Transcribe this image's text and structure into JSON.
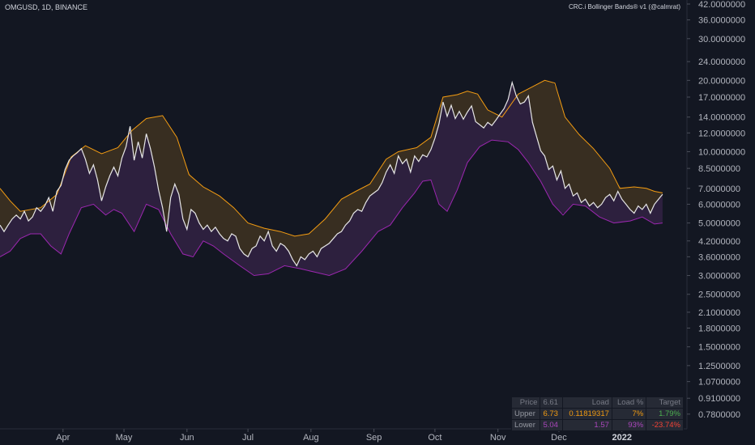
{
  "header": {
    "symbol": "OMGUSD, 1D, BINANCE",
    "indicator": "CRC.i Bollinger Bands® v1 (@calmrat)"
  },
  "chart_data": {
    "type": "line",
    "scale": "log",
    "ylim": [
      0.72,
      42
    ],
    "y_ticks": [
      "42.0000000",
      "36.0000000",
      "30.0000000",
      "24.0000000",
      "20.0000000",
      "17.0000000",
      "14.0000000",
      "12.0000000",
      "10.0000000",
      "8.5000000",
      "7.0000000",
      "6.0000000",
      "5.0000000",
      "4.2000000",
      "3.6000000",
      "3.0000000",
      "2.5000000",
      "2.1000000",
      "1.8000000",
      "1.5000000",
      "1.2500000",
      "1.0700000",
      "0.9100000",
      "0.7800000"
    ],
    "x_ticks": [
      "Apr",
      "May",
      "Jun",
      "Jul",
      "Aug",
      "Sep",
      "Oct",
      "Nov",
      "Dec",
      "2022"
    ],
    "x_tick_days": [
      31,
      61,
      92,
      122,
      153,
      184,
      214,
      245,
      275,
      306
    ],
    "x_range_days": [
      0,
      338
    ],
    "colors": {
      "price": "#e6e6e6",
      "upper": "#f39c12",
      "lower": "#9c27b0",
      "upper_fill": "#3a2f22",
      "lower_fill": "#2e2140",
      "background": "#131722"
    },
    "series": [
      {
        "role": "upper",
        "points": [
          [
            0,
            7.0
          ],
          [
            5,
            6.2
          ],
          [
            10,
            5.6
          ],
          [
            20,
            5.8
          ],
          [
            28,
            6.6
          ],
          [
            35,
            9.5
          ],
          [
            42,
            10.6
          ],
          [
            50,
            9.8
          ],
          [
            58,
            10.4
          ],
          [
            65,
            12.3
          ],
          [
            72,
            13.8
          ],
          [
            80,
            14.2
          ],
          [
            87,
            11.5
          ],
          [
            93,
            8.0
          ],
          [
            100,
            7.1
          ],
          [
            108,
            6.5
          ],
          [
            115,
            5.8
          ],
          [
            122,
            5.0
          ],
          [
            130,
            4.75
          ],
          [
            138,
            4.6
          ],
          [
            145,
            4.4
          ],
          [
            152,
            4.5
          ],
          [
            160,
            5.2
          ],
          [
            168,
            6.3
          ],
          [
            175,
            6.8
          ],
          [
            182,
            7.3
          ],
          [
            190,
            9.3
          ],
          [
            196,
            10.0
          ],
          [
            205,
            10.4
          ],
          [
            212,
            11.5
          ],
          [
            218,
            17.0
          ],
          [
            225,
            17.4
          ],
          [
            230,
            18.0
          ],
          [
            235,
            17.5
          ],
          [
            240,
            15.0
          ],
          [
            247,
            14.0
          ],
          [
            255,
            17.5
          ],
          [
            262,
            18.8
          ],
          [
            268,
            20.0
          ],
          [
            273,
            19.5
          ],
          [
            278,
            14.0
          ],
          [
            285,
            11.8
          ],
          [
            292,
            10.3
          ],
          [
            300,
            8.5
          ],
          [
            305,
            7.0
          ],
          [
            312,
            7.1
          ],
          [
            318,
            7.0
          ],
          [
            322,
            6.8
          ],
          [
            326,
            6.7
          ]
        ]
      },
      {
        "role": "lower",
        "points": [
          [
            0,
            3.6
          ],
          [
            5,
            3.8
          ],
          [
            10,
            4.3
          ],
          [
            15,
            4.5
          ],
          [
            20,
            4.5
          ],
          [
            25,
            4.0
          ],
          [
            30,
            3.7
          ],
          [
            34,
            4.5
          ],
          [
            40,
            5.8
          ],
          [
            46,
            6.0
          ],
          [
            52,
            5.4
          ],
          [
            56,
            5.7
          ],
          [
            60,
            5.5
          ],
          [
            66,
            4.6
          ],
          [
            72,
            6.0
          ],
          [
            78,
            5.7
          ],
          [
            84,
            4.5
          ],
          [
            90,
            3.7
          ],
          [
            95,
            3.6
          ],
          [
            100,
            4.2
          ],
          [
            105,
            4.0
          ],
          [
            110,
            3.7
          ],
          [
            118,
            3.3
          ],
          [
            125,
            3.0
          ],
          [
            132,
            3.05
          ],
          [
            140,
            3.3
          ],
          [
            148,
            3.2
          ],
          [
            155,
            3.1
          ],
          [
            162,
            3.0
          ],
          [
            170,
            3.2
          ],
          [
            178,
            3.8
          ],
          [
            186,
            4.6
          ],
          [
            192,
            4.9
          ],
          [
            198,
            5.8
          ],
          [
            204,
            6.7
          ],
          [
            208,
            7.5
          ],
          [
            212,
            7.6
          ],
          [
            216,
            6.0
          ],
          [
            220,
            5.6
          ],
          [
            225,
            6.9
          ],
          [
            230,
            9.0
          ],
          [
            236,
            10.5
          ],
          [
            242,
            11.2
          ],
          [
            250,
            11.0
          ],
          [
            255,
            10.2
          ],
          [
            260,
            9.0
          ],
          [
            266,
            7.5
          ],
          [
            272,
            6.0
          ],
          [
            277,
            5.4
          ],
          [
            282,
            6.0
          ],
          [
            288,
            5.9
          ],
          [
            295,
            5.3
          ],
          [
            302,
            5.0
          ],
          [
            310,
            5.1
          ],
          [
            316,
            5.3
          ],
          [
            322,
            4.95
          ],
          [
            326,
            5.0
          ]
        ]
      },
      {
        "role": "price",
        "points": [
          [
            0,
            4.9
          ],
          [
            2,
            4.6
          ],
          [
            4,
            4.9
          ],
          [
            6,
            5.2
          ],
          [
            8,
            5.4
          ],
          [
            10,
            5.2
          ],
          [
            12,
            5.6
          ],
          [
            14,
            5.1
          ],
          [
            16,
            5.3
          ],
          [
            18,
            5.8
          ],
          [
            20,
            5.6
          ],
          [
            22,
            5.9
          ],
          [
            24,
            6.4
          ],
          [
            26,
            5.6
          ],
          [
            28,
            6.8
          ],
          [
            30,
            7.2
          ],
          [
            32,
            8.4
          ],
          [
            34,
            9.2
          ],
          [
            36,
            9.6
          ],
          [
            38,
            9.9
          ],
          [
            40,
            10.3
          ],
          [
            42,
            9.3
          ],
          [
            44,
            8.1
          ],
          [
            46,
            8.8
          ],
          [
            48,
            7.6
          ],
          [
            50,
            6.2
          ],
          [
            52,
            7.1
          ],
          [
            54,
            7.9
          ],
          [
            56,
            8.6
          ],
          [
            58,
            7.9
          ],
          [
            60,
            9.4
          ],
          [
            62,
            10.5
          ],
          [
            64,
            12.8
          ],
          [
            66,
            9.2
          ],
          [
            68,
            11.0
          ],
          [
            70,
            9.4
          ],
          [
            72,
            11.9
          ],
          [
            74,
            10.3
          ],
          [
            76,
            8.6
          ],
          [
            78,
            6.9
          ],
          [
            80,
            5.8
          ],
          [
            82,
            4.6
          ],
          [
            84,
            6.4
          ],
          [
            86,
            7.3
          ],
          [
            88,
            6.6
          ],
          [
            90,
            5.2
          ],
          [
            92,
            4.7
          ],
          [
            94,
            5.7
          ],
          [
            96,
            5.5
          ],
          [
            98,
            5.0
          ],
          [
            100,
            4.7
          ],
          [
            102,
            4.9
          ],
          [
            104,
            4.6
          ],
          [
            106,
            4.8
          ],
          [
            108,
            4.5
          ],
          [
            110,
            4.3
          ],
          [
            112,
            4.2
          ],
          [
            114,
            4.5
          ],
          [
            116,
            4.4
          ],
          [
            118,
            3.9
          ],
          [
            120,
            3.7
          ],
          [
            122,
            3.6
          ],
          [
            124,
            3.9
          ],
          [
            126,
            4.0
          ],
          [
            128,
            4.4
          ],
          [
            130,
            4.2
          ],
          [
            132,
            4.6
          ],
          [
            134,
            4.0
          ],
          [
            136,
            3.8
          ],
          [
            138,
            4.1
          ],
          [
            140,
            4.0
          ],
          [
            142,
            3.8
          ],
          [
            144,
            3.5
          ],
          [
            146,
            3.3
          ],
          [
            148,
            3.6
          ],
          [
            150,
            3.5
          ],
          [
            152,
            3.7
          ],
          [
            154,
            3.8
          ],
          [
            156,
            3.6
          ],
          [
            158,
            3.9
          ],
          [
            160,
            4.0
          ],
          [
            162,
            4.1
          ],
          [
            164,
            4.3
          ],
          [
            166,
            4.5
          ],
          [
            168,
            4.6
          ],
          [
            170,
            4.9
          ],
          [
            172,
            5.1
          ],
          [
            174,
            5.5
          ],
          [
            176,
            5.7
          ],
          [
            178,
            5.6
          ],
          [
            180,
            6.1
          ],
          [
            182,
            6.5
          ],
          [
            184,
            6.7
          ],
          [
            186,
            6.9
          ],
          [
            188,
            7.4
          ],
          [
            190,
            8.2
          ],
          [
            192,
            8.8
          ],
          [
            194,
            8.1
          ],
          [
            196,
            9.6
          ],
          [
            198,
            8.9
          ],
          [
            200,
            9.3
          ],
          [
            202,
            8.2
          ],
          [
            204,
            9.6
          ],
          [
            206,
            9.1
          ],
          [
            208,
            9.7
          ],
          [
            210,
            9.5
          ],
          [
            212,
            10.2
          ],
          [
            214,
            11.4
          ],
          [
            216,
            13.1
          ],
          [
            218,
            16.2
          ],
          [
            220,
            14.1
          ],
          [
            222,
            15.7
          ],
          [
            224,
            13.8
          ],
          [
            226,
            14.8
          ],
          [
            228,
            13.7
          ],
          [
            230,
            14.7
          ],
          [
            232,
            15.6
          ],
          [
            234,
            13.4
          ],
          [
            236,
            13.0
          ],
          [
            238,
            12.6
          ],
          [
            240,
            13.3
          ],
          [
            242,
            12.9
          ],
          [
            244,
            13.6
          ],
          [
            246,
            14.4
          ],
          [
            248,
            15.2
          ],
          [
            250,
            16.6
          ],
          [
            252,
            19.6
          ],
          [
            254,
            17.2
          ],
          [
            256,
            15.9
          ],
          [
            258,
            16.2
          ],
          [
            260,
            17.2
          ],
          [
            262,
            13.3
          ],
          [
            264,
            11.6
          ],
          [
            266,
            10.1
          ],
          [
            268,
            9.6
          ],
          [
            270,
            8.4
          ],
          [
            272,
            8.7
          ],
          [
            274,
            7.6
          ],
          [
            276,
            8.3
          ],
          [
            278,
            7.0
          ],
          [
            280,
            7.3
          ],
          [
            282,
            6.5
          ],
          [
            284,
            6.7
          ],
          [
            286,
            6.1
          ],
          [
            288,
            6.3
          ],
          [
            290,
            5.9
          ],
          [
            292,
            6.1
          ],
          [
            294,
            5.8
          ],
          [
            296,
            6.0
          ],
          [
            298,
            6.4
          ],
          [
            300,
            6.6
          ],
          [
            302,
            6.2
          ],
          [
            304,
            6.8
          ],
          [
            306,
            6.3
          ],
          [
            308,
            6.0
          ],
          [
            310,
            5.7
          ],
          [
            312,
            5.5
          ],
          [
            314,
            5.9
          ],
          [
            316,
            5.7
          ],
          [
            318,
            6.0
          ],
          [
            320,
            5.5
          ],
          [
            322,
            6.0
          ],
          [
            324,
            6.3
          ],
          [
            326,
            6.61
          ]
        ]
      }
    ]
  },
  "info_table": {
    "header": [
      "Price",
      "6.61",
      "Load",
      "Load %",
      "Target"
    ],
    "rows": [
      [
        "Upper",
        "6.73",
        "0.11819317",
        "7%",
        "1.79%"
      ],
      [
        "Lower",
        "5.04",
        "1.57",
        "93%",
        "-23.74%"
      ]
    ]
  }
}
